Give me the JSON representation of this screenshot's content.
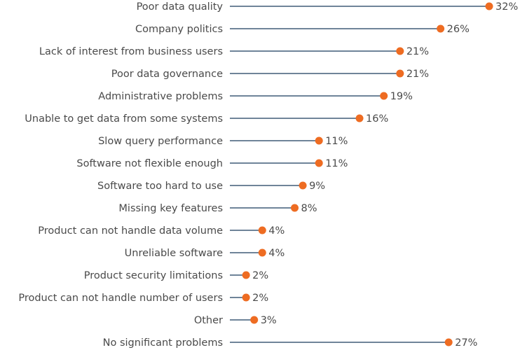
{
  "chart_data": {
    "type": "lollipop",
    "title": "",
    "xlabel": "",
    "ylabel": "",
    "xlim": [
      0,
      32
    ],
    "grid": false,
    "value_suffix": "%",
    "categories": [
      "Poor data quality",
      "Company politics",
      "Lack of interest from business users",
      "Poor data governance",
      "Administrative problems",
      "Unable to get data from some systems",
      "Slow query performance",
      "Software not flexible enough",
      "Software too hard to use",
      "Missing key features",
      "Product can not handle data volume",
      "Unreliable software",
      "Product security limitations",
      "Product can not handle number of users",
      "Other",
      "No significant problems"
    ],
    "values": [
      32,
      26,
      21,
      21,
      19,
      16,
      11,
      11,
      9,
      8,
      4,
      4,
      2,
      2,
      3,
      27
    ],
    "labels": [
      "32%",
      "26%",
      "21%",
      "21%",
      "19%",
      "16%",
      "11%",
      "11%",
      "9%",
      "8%",
      "4%",
      "4%",
      "2%",
      "2%",
      "3%",
      "27%"
    ],
    "colors": {
      "stem": "#6f8499",
      "dot": "#ee6c22",
      "text": "#4a4a4a"
    }
  }
}
